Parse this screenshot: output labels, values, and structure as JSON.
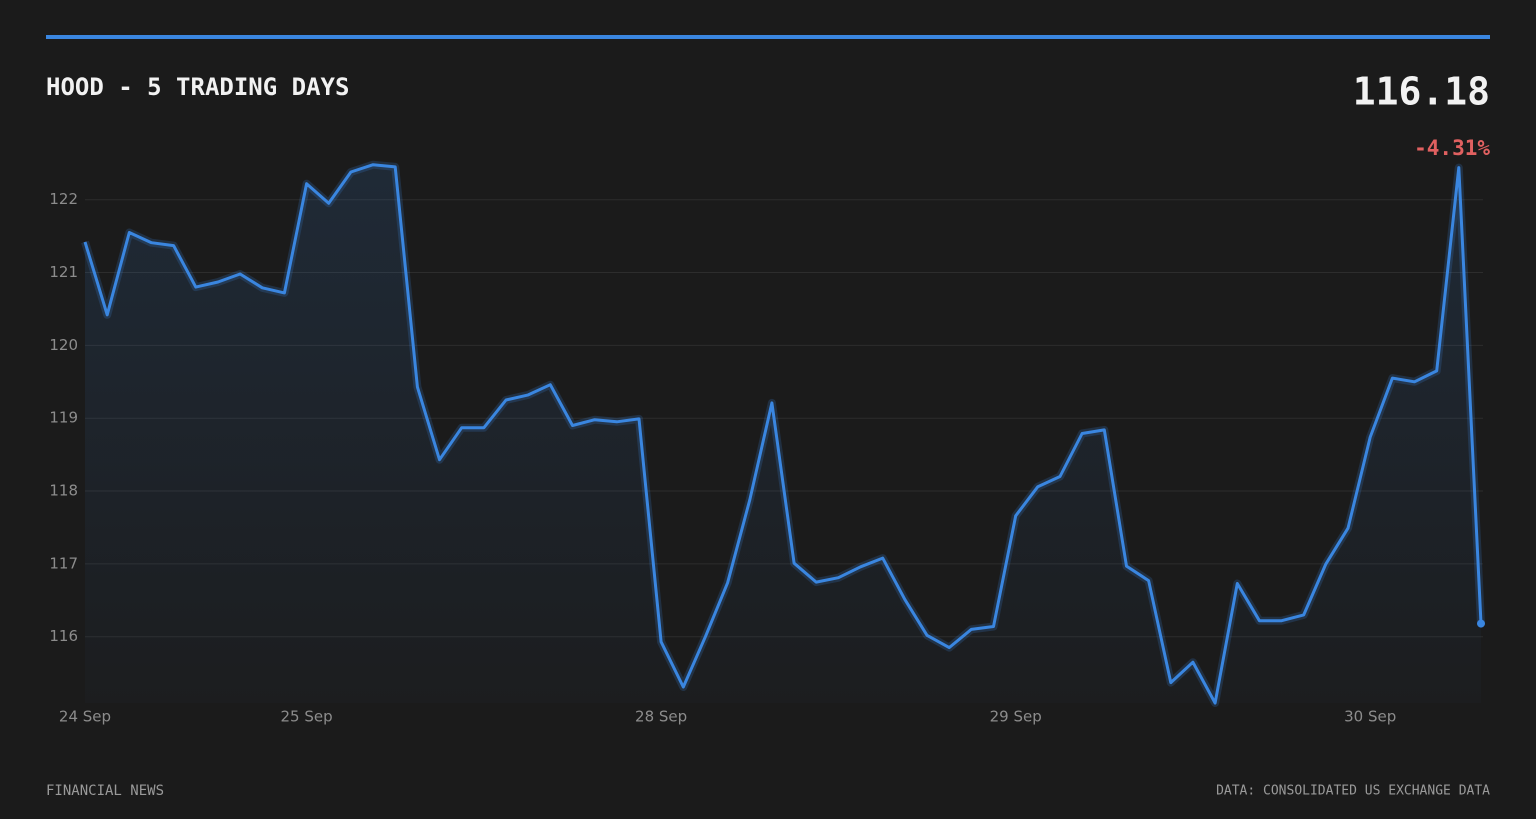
{
  "header": {
    "title": "HOOD - 5 TRADING DAYS",
    "price": "116.18",
    "change": "-4.31%"
  },
  "chart_data": {
    "type": "line",
    "color": "#3a86e0",
    "categories": [
      "24 Sep",
      null,
      null,
      null,
      null,
      null,
      null,
      null,
      null,
      null,
      "25 Sep",
      null,
      null,
      null,
      null,
      null,
      null,
      null,
      null,
      null,
      null,
      null,
      null,
      null,
      null,
      null,
      "28 Sep",
      null,
      null,
      null,
      null,
      null,
      null,
      null,
      null,
      null,
      null,
      null,
      null,
      null,
      null,
      null,
      "29 Sep",
      null,
      null,
      null,
      null,
      null,
      null,
      null,
      null,
      null,
      null,
      null,
      null,
      null,
      null,
      null,
      "30 Sep",
      null,
      null,
      null,
      null,
      null
    ],
    "values": [
      121.42,
      120.42,
      121.55,
      121.41,
      121.37,
      120.8,
      120.87,
      120.98,
      120.79,
      120.72,
      122.22,
      121.95,
      122.38,
      122.48,
      122.45,
      119.43,
      118.43,
      118.87,
      118.87,
      119.25,
      119.32,
      119.46,
      118.9,
      118.98,
      118.95,
      118.99,
      115.93,
      115.31,
      116.0,
      116.74,
      117.88,
      119.21,
      117.01,
      116.75,
      116.81,
      116.96,
      117.08,
      116.51,
      116.02,
      115.85,
      116.1,
      116.14,
      117.66,
      118.06,
      118.2,
      118.79,
      118.84,
      116.97,
      116.77,
      115.37,
      115.65,
      115.09,
      116.73,
      116.22,
      116.22,
      116.3,
      117.0,
      117.49,
      118.74,
      119.55,
      119.5,
      119.65,
      122.44,
      116.18
    ],
    "ylim": [
      115.09,
      122.49
    ],
    "yticks": [
      116,
      117,
      118,
      119,
      120,
      121,
      122
    ],
    "grid": true
  },
  "footer": {
    "left": "FINANCIAL NEWS",
    "right": "DATA: CONSOLIDATED US EXCHANGE DATA"
  }
}
